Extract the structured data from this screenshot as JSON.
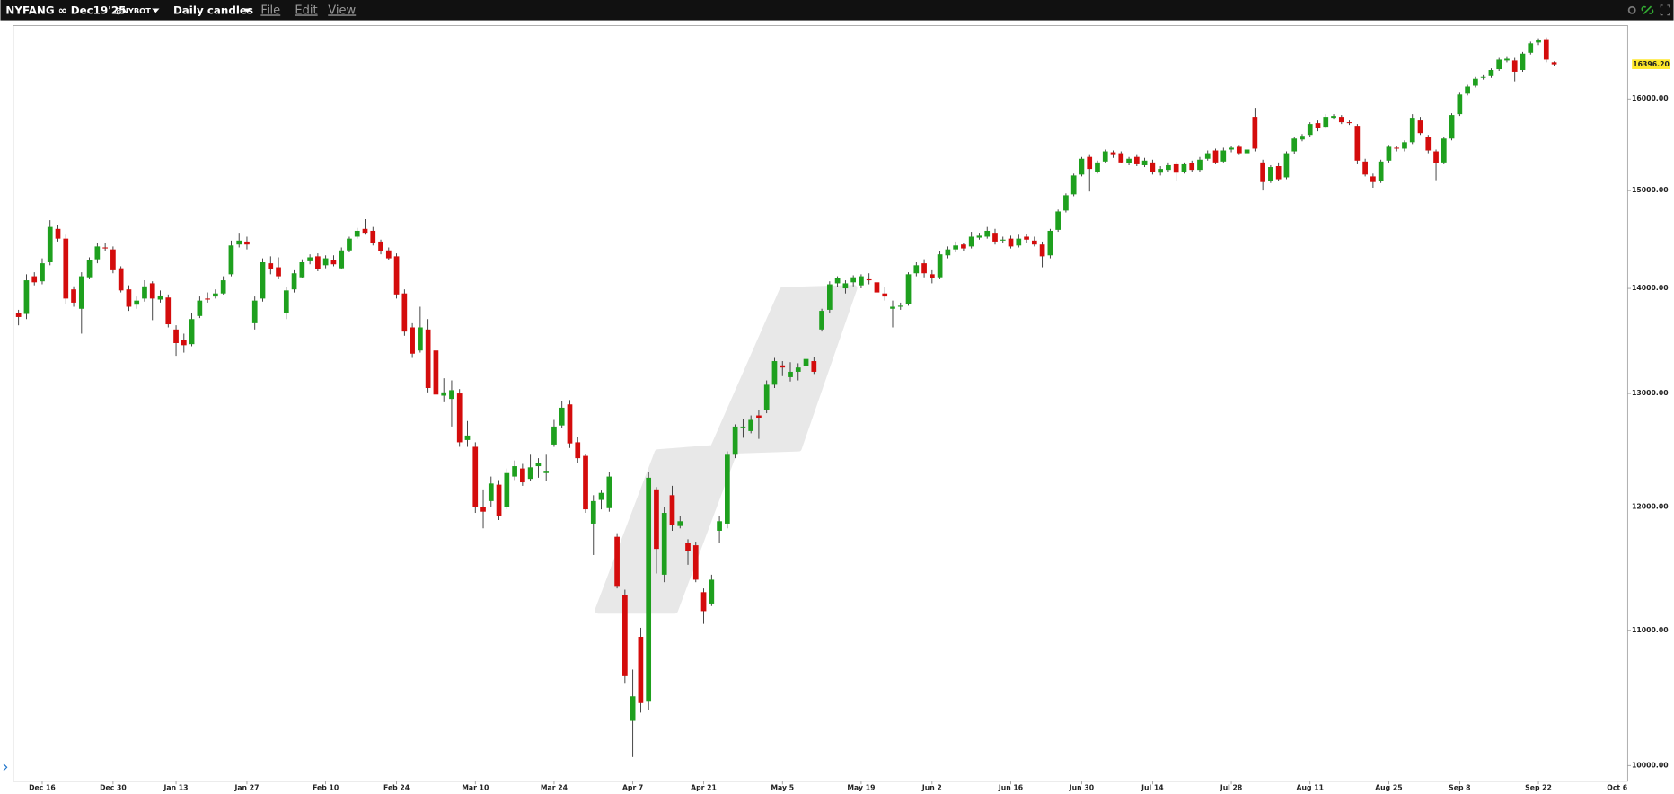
{
  "toolbar": {
    "symbol": "NYFANG ∞ Dec19'25",
    "exchange": "@NYBOT",
    "interval": "Daily candles",
    "menus": [
      "File",
      "Edit",
      "View"
    ]
  },
  "chart_data": {
    "type": "candlestick",
    "categories": [
      null,
      null,
      null,
      "Dec 16",
      null,
      null,
      null,
      null,
      null,
      null,
      null,
      null,
      "Dec 30",
      null,
      null,
      null,
      null,
      null,
      null,
      null,
      "Jan 13",
      null,
      null,
      null,
      null,
      null,
      null,
      null,
      null,
      "Jan 27",
      null,
      null,
      null,
      null,
      null,
      null,
      null,
      null,
      null,
      "Feb 10",
      null,
      null,
      null,
      null,
      null,
      null,
      null,
      null,
      "Feb 24",
      null,
      null,
      null,
      null,
      null,
      null,
      null,
      null,
      null,
      "Mar 10",
      null,
      null,
      null,
      null,
      null,
      null,
      null,
      null,
      null,
      "Mar 24",
      null,
      null,
      null,
      null,
      null,
      null,
      null,
      null,
      null,
      "Apr 7",
      null,
      null,
      null,
      null,
      null,
      null,
      null,
      null,
      "Apr 21",
      null,
      null,
      null,
      null,
      null,
      null,
      null,
      null,
      null,
      "May 5",
      null,
      null,
      null,
      null,
      null,
      null,
      null,
      null,
      null,
      "May 19",
      null,
      null,
      null,
      null,
      null,
      null,
      null,
      null,
      "Jun 2",
      null,
      null,
      null,
      null,
      null,
      null,
      null,
      null,
      null,
      "Jun 16",
      null,
      null,
      null,
      null,
      null,
      null,
      null,
      null,
      "Jun 30",
      null,
      null,
      null,
      null,
      null,
      null,
      null,
      null,
      "Jul 14",
      null,
      null,
      null,
      null,
      null,
      null,
      null,
      null,
      null,
      "Jul 28",
      null,
      null,
      null,
      null,
      null,
      null,
      null,
      null,
      null,
      "Aug 11",
      null,
      null,
      null,
      null,
      null,
      null,
      null,
      null,
      null,
      "Aug 25",
      null,
      null,
      null,
      null,
      null,
      null,
      null,
      null,
      "Sep 8",
      null,
      null,
      null,
      null,
      null,
      null,
      null,
      null,
      null,
      "Sep 22",
      null,
      null,
      null,
      null,
      null,
      null,
      null,
      null,
      null,
      "Oct 6",
      null
    ],
    "values": [
      [
        13760,
        13790,
        13640,
        13720
      ],
      [
        13750,
        14140,
        13700,
        14080
      ],
      [
        14120,
        14160,
        14030,
        14060
      ],
      [
        14070,
        14300,
        14040,
        14250
      ],
      [
        14260,
        14690,
        14230,
        14620
      ],
      [
        14600,
        14640,
        14470,
        14500
      ],
      [
        14500,
        14540,
        13850,
        13900
      ],
      [
        13990,
        14020,
        13820,
        13860
      ],
      [
        13800,
        14160,
        13560,
        14120
      ],
      [
        14110,
        14310,
        14090,
        14280
      ],
      [
        14290,
        14460,
        14250,
        14420
      ],
      [
        14410,
        14460,
        14370,
        14400
      ],
      [
        14390,
        14420,
        14150,
        14180
      ],
      [
        14200,
        14220,
        13960,
        13980
      ],
      [
        13990,
        14030,
        13780,
        13820
      ],
      [
        13840,
        13920,
        13800,
        13880
      ],
      [
        13900,
        14080,
        13870,
        14020
      ],
      [
        14050,
        14070,
        13690,
        13900
      ],
      [
        13890,
        13980,
        13860,
        13930
      ],
      [
        13910,
        13940,
        13620,
        13650
      ],
      [
        13600,
        13640,
        13350,
        13470
      ],
      [
        13500,
        13560,
        13380,
        13450
      ],
      [
        13460,
        13760,
        13440,
        13700
      ],
      [
        13730,
        13920,
        13710,
        13880
      ],
      [
        13900,
        13960,
        13860,
        13890
      ],
      [
        13920,
        13990,
        13900,
        13950
      ],
      [
        13950,
        14120,
        13940,
        14080
      ],
      [
        14140,
        14480,
        14120,
        14430
      ],
      [
        14440,
        14560,
        14410,
        14480
      ],
      [
        14470,
        14520,
        14390,
        14440
      ],
      [
        13660,
        13920,
        13600,
        13880
      ],
      [
        13900,
        14300,
        13870,
        14260
      ],
      [
        14250,
        14320,
        14140,
        14190
      ],
      [
        14210,
        14310,
        14090,
        14120
      ],
      [
        13760,
        14010,
        13700,
        13980
      ],
      [
        13990,
        14180,
        13960,
        14150
      ],
      [
        14110,
        14290,
        14100,
        14260
      ],
      [
        14270,
        14340,
        14240,
        14310
      ],
      [
        14320,
        14350,
        14170,
        14190
      ],
      [
        14230,
        14330,
        14200,
        14300
      ],
      [
        14280,
        14330,
        14220,
        14240
      ],
      [
        14200,
        14410,
        14190,
        14380
      ],
      [
        14380,
        14520,
        14360,
        14500
      ],
      [
        14520,
        14610,
        14500,
        14580
      ],
      [
        14600,
        14700,
        14540,
        14560
      ],
      [
        14580,
        14620,
        14430,
        14460
      ],
      [
        14470,
        14490,
        14340,
        14370
      ],
      [
        14380,
        14410,
        14280,
        14300
      ],
      [
        14320,
        14350,
        13900,
        13940
      ],
      [
        13950,
        13990,
        13540,
        13580
      ],
      [
        13620,
        13660,
        13330,
        13370
      ],
      [
        13400,
        13820,
        13380,
        13620
      ],
      [
        13600,
        13700,
        13010,
        13050
      ],
      [
        13400,
        13520,
        12920,
        12990
      ],
      [
        12980,
        13140,
        12920,
        13010
      ],
      [
        12950,
        13120,
        12700,
        13030
      ],
      [
        13000,
        13040,
        12520,
        12560
      ],
      [
        12580,
        12750,
        12520,
        12620
      ],
      [
        12520,
        12560,
        11950,
        12000
      ],
      [
        12000,
        12150,
        11820,
        11960
      ],
      [
        12050,
        12260,
        12000,
        12200
      ],
      [
        12190,
        12230,
        11890,
        11920
      ],
      [
        12000,
        12330,
        11980,
        12290
      ],
      [
        12260,
        12400,
        12230,
        12350
      ],
      [
        12330,
        12370,
        12180,
        12210
      ],
      [
        12240,
        12450,
        12220,
        12340
      ],
      [
        12350,
        12420,
        12250,
        12380
      ],
      [
        12290,
        12450,
        12220,
        12310
      ],
      [
        12540,
        12760,
        12520,
        12700
      ],
      [
        12710,
        12930,
        12690,
        12870
      ],
      [
        12900,
        12940,
        12510,
        12550
      ],
      [
        12560,
        12610,
        12380,
        12420
      ],
      [
        12440,
        12460,
        11950,
        11980
      ],
      [
        11860,
        12100,
        11600,
        12050
      ],
      [
        12060,
        12140,
        11980,
        12120
      ],
      [
        11990,
        12300,
        11960,
        12260
      ],
      [
        11750,
        11780,
        11330,
        11350
      ],
      [
        11280,
        11320,
        10600,
        10650
      ],
      [
        10320,
        10700,
        10060,
        10500
      ],
      [
        10950,
        11020,
        10380,
        10450
      ],
      [
        10460,
        12300,
        10400,
        12250
      ],
      [
        12150,
        12170,
        11450,
        11650
      ],
      [
        11440,
        12000,
        11380,
        11950
      ],
      [
        12100,
        12180,
        11800,
        11850
      ],
      [
        11840,
        11920,
        11820,
        11880
      ],
      [
        11700,
        11730,
        11520,
        11630
      ],
      [
        11680,
        11710,
        11380,
        11400
      ],
      [
        11300,
        11330,
        11050,
        11150
      ],
      [
        11210,
        11440,
        11190,
        11400
      ],
      [
        11800,
        11920,
        11700,
        11880
      ],
      [
        11860,
        12480,
        11820,
        12450
      ],
      [
        12450,
        12720,
        12420,
        12700
      ],
      [
        12700,
        12770,
        12600,
        12700
      ],
      [
        12660,
        12800,
        12640,
        12760
      ],
      [
        12800,
        12850,
        12590,
        12780
      ],
      [
        12850,
        13120,
        12820,
        13080
      ],
      [
        13080,
        13330,
        13050,
        13300
      ],
      [
        13260,
        13300,
        13160,
        13240
      ],
      [
        13150,
        13290,
        13110,
        13200
      ],
      [
        13200,
        13280,
        13120,
        13240
      ],
      [
        13250,
        13380,
        13220,
        13320
      ],
      [
        13300,
        13340,
        13180,
        13200
      ],
      [
        13600,
        13800,
        13580,
        13780
      ],
      [
        13790,
        14070,
        13760,
        14040
      ],
      [
        14050,
        14120,
        14010,
        14100
      ],
      [
        14000,
        14080,
        13950,
        14050
      ],
      [
        14060,
        14130,
        14020,
        14110
      ],
      [
        14030,
        14140,
        14000,
        14120
      ],
      [
        14090,
        14150,
        14040,
        14080
      ],
      [
        14060,
        14180,
        13930,
        13960
      ],
      [
        13950,
        14010,
        13880,
        13920
      ],
      [
        13800,
        13880,
        13620,
        13820
      ],
      [
        13820,
        13860,
        13790,
        13830
      ],
      [
        13850,
        14160,
        13830,
        14140
      ],
      [
        14150,
        14260,
        14120,
        14230
      ],
      [
        14250,
        14290,
        14110,
        14150
      ],
      [
        14140,
        14180,
        14050,
        14100
      ],
      [
        14110,
        14370,
        14090,
        14340
      ],
      [
        14330,
        14420,
        14300,
        14390
      ],
      [
        14390,
        14470,
        14360,
        14430
      ],
      [
        14440,
        14460,
        14370,
        14400
      ],
      [
        14420,
        14570,
        14400,
        14520
      ],
      [
        14510,
        14560,
        14490,
        14530
      ],
      [
        14520,
        14620,
        14500,
        14580
      ],
      [
        14560,
        14600,
        14440,
        14470
      ],
      [
        14480,
        14520,
        14460,
        14490
      ],
      [
        14500,
        14530,
        14400,
        14420
      ],
      [
        14430,
        14540,
        14410,
        14500
      ],
      [
        14520,
        14550,
        14460,
        14490
      ],
      [
        14480,
        14520,
        14420,
        14440
      ],
      [
        14440,
        14470,
        14210,
        14320
      ],
      [
        14330,
        14600,
        14300,
        14580
      ],
      [
        14590,
        14800,
        14570,
        14780
      ],
      [
        14790,
        14970,
        14770,
        14950
      ],
      [
        14960,
        15180,
        14940,
        15160
      ],
      [
        15170,
        15360,
        15150,
        15340
      ],
      [
        15360,
        15380,
        14990,
        15230
      ],
      [
        15200,
        15320,
        15180,
        15300
      ],
      [
        15310,
        15440,
        15290,
        15420
      ],
      [
        15410,
        15430,
        15350,
        15380
      ],
      [
        15400,
        15420,
        15290,
        15300
      ],
      [
        15290,
        15360,
        15270,
        15340
      ],
      [
        15360,
        15380,
        15260,
        15280
      ],
      [
        15270,
        15350,
        15250,
        15320
      ],
      [
        15300,
        15330,
        15170,
        15200
      ],
      [
        15190,
        15260,
        15160,
        15230
      ],
      [
        15220,
        15300,
        15200,
        15270
      ],
      [
        15280,
        15310,
        15100,
        15190
      ],
      [
        15200,
        15300,
        15180,
        15280
      ],
      [
        15290,
        15320,
        15200,
        15220
      ],
      [
        15220,
        15360,
        15200,
        15330
      ],
      [
        15340,
        15430,
        15320,
        15400
      ],
      [
        15430,
        15450,
        15280,
        15300
      ],
      [
        15310,
        15460,
        15300,
        15430
      ],
      [
        15440,
        15480,
        15410,
        15460
      ],
      [
        15470,
        15490,
        15380,
        15400
      ],
      [
        15400,
        15470,
        15370,
        15440
      ],
      [
        15800,
        15900,
        15420,
        15450
      ],
      [
        15300,
        15330,
        15000,
        15090
      ],
      [
        15100,
        15270,
        15080,
        15250
      ],
      [
        15260,
        15300,
        15100,
        15120
      ],
      [
        15140,
        15420,
        15120,
        15400
      ],
      [
        15420,
        15580,
        15390,
        15560
      ],
      [
        15550,
        15610,
        15530,
        15590
      ],
      [
        15600,
        15740,
        15580,
        15720
      ],
      [
        15730,
        15760,
        15640,
        15680
      ],
      [
        15690,
        15830,
        15670,
        15800
      ],
      [
        15790,
        15830,
        15770,
        15810
      ],
      [
        15800,
        15820,
        15720,
        15740
      ],
      [
        15740,
        15760,
        15710,
        15730
      ],
      [
        15700,
        15720,
        15280,
        15320
      ],
      [
        15310,
        15340,
        15150,
        15170
      ],
      [
        15150,
        15180,
        15030,
        15090
      ],
      [
        15100,
        15330,
        15080,
        15310
      ],
      [
        15320,
        15490,
        15300,
        15470
      ],
      [
        15460,
        15480,
        15420,
        15450
      ],
      [
        15450,
        15540,
        15420,
        15520
      ],
      [
        15520,
        15830,
        15500,
        15790
      ],
      [
        15760,
        15800,
        15600,
        15620
      ],
      [
        15580,
        15600,
        15400,
        15430
      ],
      [
        15420,
        15440,
        15110,
        15290
      ],
      [
        15300,
        15580,
        15280,
        15560
      ],
      [
        15560,
        15840,
        15540,
        15820
      ],
      [
        15830,
        16080,
        15810,
        16050
      ],
      [
        16060,
        16160,
        16040,
        16140
      ],
      [
        16150,
        16250,
        16130,
        16230
      ],
      [
        16240,
        16280,
        16220,
        16250
      ],
      [
        16260,
        16350,
        16240,
        16330
      ],
      [
        16340,
        16470,
        16320,
        16450
      ],
      [
        16440,
        16490,
        16420,
        16460
      ],
      [
        16440,
        16470,
        16200,
        16310
      ],
      [
        16330,
        16540,
        16310,
        16520
      ],
      [
        16530,
        16660,
        16510,
        16640
      ],
      [
        16650,
        16700,
        16620,
        16680
      ],
      [
        16690,
        16710,
        16420,
        16450
      ],
      [
        16420,
        16430,
        16380,
        16396.2
      ],
      null,
      null,
      null,
      null,
      null,
      null,
      null,
      null,
      null
    ],
    "ylim": [
      9890,
      16850
    ],
    "log_scale": true,
    "grid": false,
    "yticks": [
      {
        "value": 10000,
        "label": "10000.00"
      },
      {
        "value": 11000,
        "label": "11000.00"
      },
      {
        "value": 12000,
        "label": "12000.00"
      },
      {
        "value": 13000,
        "label": "13000.00"
      },
      {
        "value": 14000,
        "label": "14000.00"
      },
      {
        "value": 15000,
        "label": "15000.00"
      },
      {
        "value": 16000,
        "label": "16000.00"
      }
    ],
    "up_color": "#1ea01e",
    "down_color": "#d40c0c",
    "last_price": {
      "value": 16396.2,
      "label": "16396.20"
    }
  }
}
